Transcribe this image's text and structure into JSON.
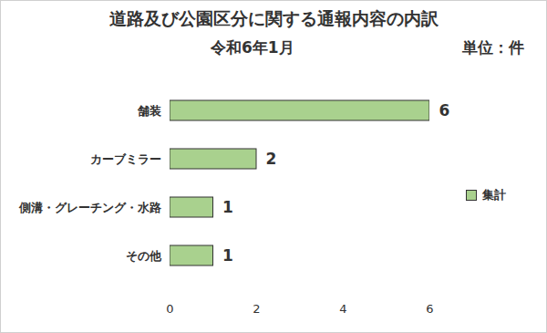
{
  "chart_data": {
    "type": "bar",
    "orientation": "horizontal",
    "title": "道路及び公園区分に関する通報内容の内訳",
    "subtitle": "令和6年1月",
    "annotations": [
      "単位：件"
    ],
    "categories": [
      "舗装",
      "カーブミラー",
      "側溝・グレーチング・水路",
      "その他"
    ],
    "series": [
      {
        "name": "集計",
        "color": "#a9d18e",
        "values": [
          6,
          2,
          1,
          1
        ]
      }
    ],
    "xlim": [
      0,
      6
    ],
    "xticks": [
      0,
      2,
      4,
      6
    ],
    "grid": false,
    "legend": "right",
    "data_labels": true
  }
}
